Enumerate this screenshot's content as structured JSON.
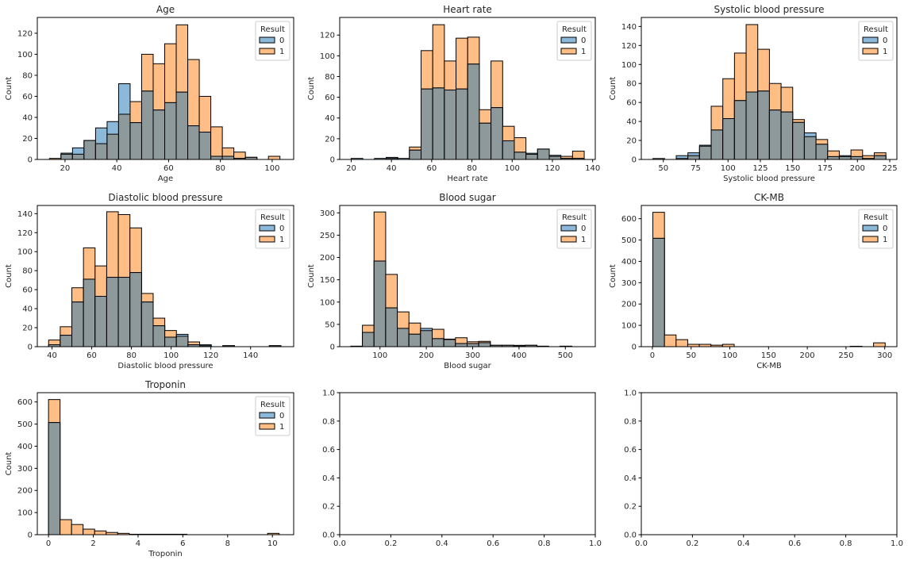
{
  "chart_data": [
    {
      "type": "bar",
      "title": "Age",
      "xlabel": "Age",
      "ylabel": "Count",
      "xlim": [
        9.3,
        108.3
      ],
      "ylim": [
        0,
        135
      ],
      "xticks": [
        20,
        40,
        60,
        80,
        100
      ],
      "xtick_labels": [
        "20",
        "40",
        "60",
        "80",
        "100"
      ],
      "yticks": [
        0,
        20,
        40,
        60,
        80,
        100,
        120
      ],
      "ytick_labels": [
        "0",
        "20",
        "40",
        "60",
        "80",
        "100",
        "120"
      ],
      "bin_start": 14,
      "bin_width": 4.45,
      "legend_title": "Result",
      "legend_position": "top-right",
      "series": [
        {
          "name": "0",
          "values": [
            0,
            6,
            11,
            18,
            30,
            36,
            72,
            35,
            65,
            47,
            54,
            64,
            32,
            26,
            3,
            3,
            1,
            2,
            0,
            0
          ]
        },
        {
          "name": "1",
          "values": [
            1,
            5,
            5,
            18,
            15,
            24,
            43,
            55,
            100,
            91,
            110,
            128,
            95,
            60,
            31,
            11,
            7,
            2,
            0,
            3
          ]
        }
      ]
    },
    {
      "type": "bar",
      "title": "Heart rate",
      "xlabel": "Heart rate",
      "ylabel": "Count",
      "xlim": [
        14.3,
        141.3
      ],
      "ylim": [
        0,
        137
      ],
      "xticks": [
        20,
        40,
        60,
        80,
        100,
        120,
        140
      ],
      "xtick_labels": [
        "20",
        "40",
        "60",
        "80",
        "100",
        "120",
        "140"
      ],
      "yticks": [
        0,
        20,
        40,
        60,
        80,
        100,
        120
      ],
      "ytick_labels": [
        "0",
        "20",
        "40",
        "60",
        "80",
        "100",
        "120"
      ],
      "bin_start": 20,
      "bin_width": 5.79,
      "legend_title": "Result",
      "legend_position": "top-right",
      "series": [
        {
          "name": "0",
          "values": [
            1,
            0,
            1,
            2,
            1,
            9,
            68,
            69,
            67,
            68,
            92,
            35,
            50,
            18,
            7,
            6,
            10,
            4,
            1,
            1
          ]
        },
        {
          "name": "1",
          "values": [
            0,
            0,
            0,
            1,
            0,
            12,
            105,
            130,
            95,
            117,
            118,
            48,
            95,
            32,
            21,
            5,
            10,
            3,
            3,
            8
          ]
        }
      ]
    },
    {
      "type": "bar",
      "title": "Systolic blood pressure",
      "xlabel": "Systolic blood pressure",
      "ylabel": "Count",
      "xlim": [
        33,
        230.5
      ],
      "ylim": [
        0,
        149.5
      ],
      "xticks": [
        50,
        75,
        100,
        125,
        150,
        175,
        200,
        225
      ],
      "xtick_labels": [
        "50",
        "75",
        "100",
        "125",
        "150",
        "175",
        "200",
        "225"
      ],
      "yticks": [
        0,
        20,
        40,
        60,
        80,
        100,
        120,
        140
      ],
      "ytick_labels": [
        "0",
        "20",
        "40",
        "60",
        "80",
        "100",
        "120",
        "140"
      ],
      "bin_start": 42,
      "bin_width": 9,
      "legend_title": "Result",
      "legend_position": "top-right",
      "series": [
        {
          "name": "0",
          "values": [
            1,
            0,
            4,
            7,
            15,
            31,
            43,
            62,
            71,
            72,
            52,
            50,
            39,
            28,
            16,
            3,
            4,
            3,
            1,
            4
          ]
        },
        {
          "name": "1",
          "values": [
            0,
            0,
            1,
            4,
            14,
            56,
            85,
            112,
            142,
            116,
            80,
            76,
            42,
            24,
            21,
            9,
            3,
            10,
            4,
            7
          ]
        }
      ]
    },
    {
      "type": "bar",
      "title": "Diastolic blood pressure",
      "xlabel": "Diastolic blood pressure",
      "ylabel": "Count",
      "xlim": [
        32.6,
        161.7
      ],
      "ylim": [
        0,
        148.6
      ],
      "xticks": [
        40,
        60,
        80,
        100,
        120,
        140
      ],
      "xtick_labels": [
        "40",
        "60",
        "80",
        "100",
        "120",
        "140"
      ],
      "yticks": [
        0,
        20,
        40,
        60,
        80,
        100,
        120,
        140
      ],
      "ytick_labels": [
        "0",
        "20",
        "40",
        "60",
        "80",
        "100",
        "120",
        "140"
      ],
      "bin_start": 38.3,
      "bin_width": 5.85,
      "legend_title": "Result",
      "legend_position": "top-right",
      "series": [
        {
          "name": "0",
          "values": [
            2,
            12,
            47,
            71,
            53,
            73,
            73,
            78,
            47,
            22,
            10,
            13,
            2,
            2,
            0,
            1,
            0,
            0,
            0,
            1
          ]
        },
        {
          "name": "1",
          "values": [
            7,
            21,
            62,
            104,
            85,
            142,
            139,
            125,
            56,
            30,
            17,
            11,
            5,
            1,
            0,
            1,
            0,
            0,
            0,
            1
          ]
        }
      ]
    },
    {
      "type": "bar",
      "title": "Blood sugar",
      "xlabel": "Blood sugar",
      "ylabel": "Count",
      "xlim": [
        13.1,
        564.6
      ],
      "ylim": [
        0,
        316.6
      ],
      "xticks": [
        100,
        200,
        300,
        400,
        500
      ],
      "xtick_labels": [
        "100",
        "200",
        "300",
        "400",
        "500"
      ],
      "yticks": [
        0,
        50,
        100,
        150,
        200,
        250,
        300
      ],
      "ytick_labels": [
        "0",
        "50",
        "100",
        "150",
        "200",
        "250",
        "300"
      ],
      "bin_start": 37,
      "bin_width": 25.1,
      "legend_title": "Result",
      "legend_position": "top-right",
      "series": [
        {
          "name": "0",
          "values": [
            1,
            32,
            192,
            87,
            41,
            28,
            41,
            18,
            17,
            7,
            7,
            9,
            3,
            3,
            3,
            3,
            1,
            0,
            1,
            0
          ]
        },
        {
          "name": "1",
          "values": [
            1,
            48,
            302,
            162,
            78,
            53,
            36,
            39,
            16,
            20,
            11,
            12,
            3,
            3,
            2,
            3,
            1,
            0,
            1,
            0
          ]
        }
      ]
    },
    {
      "type": "bar",
      "title": "CK-MB",
      "xlabel": "CK-MB",
      "ylabel": "Count",
      "xlim": [
        -14.3,
        315.7
      ],
      "ylim": [
        0,
        662
      ],
      "xticks": [
        0,
        50,
        100,
        150,
        200,
        250,
        300
      ],
      "xtick_labels": [
        "0",
        "50",
        "100",
        "150",
        "200",
        "250",
        "300"
      ],
      "yticks": [
        0,
        100,
        200,
        300,
        400,
        500,
        600
      ],
      "ytick_labels": [
        "0",
        "100",
        "200",
        "300",
        "400",
        "500",
        "600"
      ],
      "bin_start": 0.6,
      "bin_width": 15,
      "legend_title": "Result",
      "legend_position": "top-right",
      "series": [
        {
          "name": "0",
          "values": [
            508,
            0,
            0,
            0,
            0,
            0,
            0,
            0,
            0,
            0,
            0,
            0,
            0,
            0,
            0,
            0,
            0,
            1,
            0,
            0
          ]
        },
        {
          "name": "1",
          "values": [
            630,
            55,
            33,
            11,
            11,
            7,
            11,
            0,
            0,
            0,
            0,
            0,
            0,
            0,
            0,
            0,
            0,
            2,
            0,
            18
          ]
        }
      ]
    },
    {
      "type": "bar",
      "title": "Troponin",
      "xlabel": "Troponin",
      "ylabel": "Count",
      "xlim": [
        -0.5,
        10.95
      ],
      "ylim": [
        0,
        642
      ],
      "xticks": [
        0,
        2,
        4,
        6,
        8,
        10
      ],
      "xtick_labels": [
        "0",
        "2",
        "4",
        "6",
        "8",
        "10"
      ],
      "yticks": [
        0,
        100,
        200,
        300,
        400,
        500,
        600
      ],
      "ytick_labels": [
        "0",
        "100",
        "200",
        "300",
        "400",
        "500",
        "600"
      ],
      "bin_start": 0.001,
      "bin_width": 0.515,
      "legend_title": "Result",
      "legend_position": "top-right",
      "series": [
        {
          "name": "0",
          "values": [
            507,
            0,
            0,
            0,
            0,
            0,
            0,
            0,
            0,
            0,
            0,
            0,
            0,
            0,
            0,
            0,
            0,
            0,
            0,
            0
          ]
        },
        {
          "name": "1",
          "values": [
            611,
            68,
            46,
            25,
            17,
            10,
            6,
            2,
            2,
            2,
            2,
            2,
            0,
            0,
            0,
            0,
            0,
            0,
            0,
            6
          ]
        }
      ]
    },
    {
      "type": "empty",
      "title": "",
      "xlabel": "",
      "ylabel": "",
      "xlim": [
        0,
        1
      ],
      "ylim": [
        0,
        1
      ],
      "xticks": [
        0,
        0.2,
        0.4,
        0.6,
        0.8,
        1
      ],
      "xtick_labels": [
        "0.0",
        "0.2",
        "0.4",
        "0.6",
        "0.8",
        "1.0"
      ],
      "yticks": [
        0,
        0.2,
        0.4,
        0.6,
        0.8,
        1
      ],
      "ytick_labels": [
        "0.0",
        "0.2",
        "0.4",
        "0.6",
        "0.8",
        "1.0"
      ]
    },
    {
      "type": "empty",
      "title": "",
      "xlabel": "",
      "ylabel": "",
      "xlim": [
        0,
        1
      ],
      "ylim": [
        0,
        1
      ],
      "xticks": [
        0,
        0.2,
        0.4,
        0.6,
        0.8,
        1
      ],
      "xtick_labels": [
        "0.0",
        "0.2",
        "0.4",
        "0.6",
        "0.8",
        "1.0"
      ],
      "yticks": [
        0,
        0.2,
        0.4,
        0.6,
        0.8,
        1
      ],
      "ytick_labels": [
        "0.0",
        "0.2",
        "0.4",
        "0.6",
        "0.8",
        "1.0"
      ]
    }
  ],
  "colors": {
    "class0": "#8cb9d9",
    "class1": "#ffbe86",
    "overlap": "#8e999c",
    "edge": "#000000"
  }
}
